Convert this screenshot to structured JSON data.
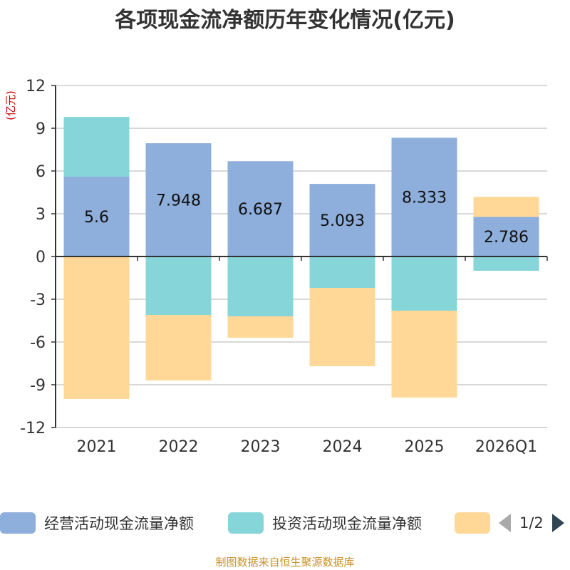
{
  "chart_data": {
    "type": "bar",
    "stacked": true,
    "title": "各项现金流净额历年变化情况(亿元)",
    "ylabel": "(亿元)",
    "xlabel": "",
    "ylim": [
      -12,
      12
    ],
    "yticks": [
      12,
      9,
      6,
      3,
      0,
      -3,
      -6,
      -9,
      -12
    ],
    "categories": [
      "2021",
      "2022",
      "2023",
      "2024",
      "2025",
      "2026Q1"
    ],
    "series": [
      {
        "name": "经营活动现金流量净额",
        "color": "#8eaedb",
        "values": [
          5.6,
          7.948,
          6.687,
          5.093,
          8.333,
          2.786
        ],
        "labels": [
          "5.6",
          "7.948",
          "6.687",
          "5.093",
          "8.333",
          "2.786"
        ]
      },
      {
        "name": "投资活动现金流量净额",
        "color": "#86d5d8",
        "values": [
          4.2,
          -4.1,
          -4.2,
          -2.2,
          -3.8,
          -1.0
        ]
      },
      {
        "name": "",
        "color": "#ffd898",
        "values": [
          -10.0,
          -4.6,
          -1.5,
          -5.5,
          -6.1,
          1.4
        ]
      }
    ],
    "legend_position": "bottom",
    "grid": true
  },
  "legend": {
    "items": [
      {
        "label": "经营活动现金流量净额",
        "color": "#8eaedb"
      },
      {
        "label": "投资活动现金流量净额",
        "color": "#86d5d8"
      },
      {
        "label": "",
        "color": "#ffd898"
      }
    ],
    "page_text": "1/2"
  },
  "source_text": "制图数据来自恒生聚源数据库"
}
